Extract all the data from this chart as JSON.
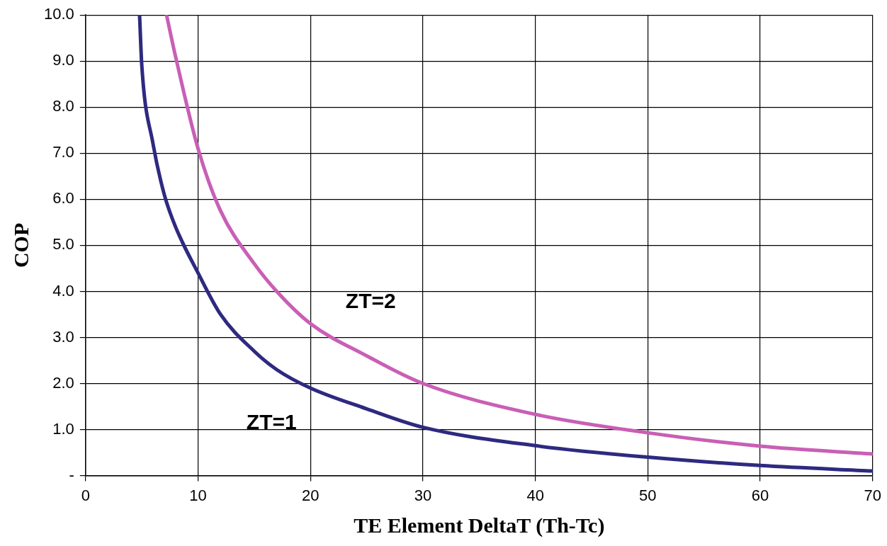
{
  "chart_data": {
    "type": "line",
    "xlabel": "TE Element DeltaT (Th-Tc)",
    "ylabel": "COP",
    "xlim": [
      0,
      70
    ],
    "xticks": [
      0,
      10,
      20,
      30,
      40,
      50,
      60,
      70
    ],
    "ylim": [
      0,
      10
    ],
    "yticks": [
      {
        "value": 0,
        "label": "-"
      },
      {
        "value": 1,
        "label": "1.0"
      },
      {
        "value": 2,
        "label": "2.0"
      },
      {
        "value": 3,
        "label": "3.0"
      },
      {
        "value": 4,
        "label": "4.0"
      },
      {
        "value": 5,
        "label": "5.0"
      },
      {
        "value": 6,
        "label": "6.0"
      },
      {
        "value": 7,
        "label": "7.0"
      },
      {
        "value": 8,
        "label": "8.0"
      },
      {
        "value": 9,
        "label": "9.0"
      },
      {
        "value": 10,
        "label": "10.0"
      }
    ],
    "grid": true,
    "legend": false,
    "marker": "none",
    "line_style": "solid",
    "series": [
      {
        "name": "ZT=1",
        "color": "#2e2a80",
        "x": [
          4.8,
          5,
          6,
          7,
          8,
          10,
          12,
          15,
          17,
          20,
          25,
          30,
          40,
          50,
          60,
          70
        ],
        "values": [
          10,
          8.9,
          7.2,
          6.1,
          5.4,
          4.4,
          3.5,
          2.7,
          2.3,
          1.9,
          1.45,
          1.05,
          0.65,
          0.4,
          0.22,
          0.1
        ]
      },
      {
        "name": "ZT=2",
        "color": "#c95fb5",
        "x": [
          7.2,
          8,
          10,
          12,
          15,
          17,
          20,
          25,
          30,
          40,
          50,
          60,
          70
        ],
        "values": [
          10,
          9.1,
          7.1,
          5.75,
          4.6,
          4.0,
          3.3,
          2.6,
          2.0,
          1.33,
          0.93,
          0.64,
          0.47
        ]
      }
    ]
  }
}
